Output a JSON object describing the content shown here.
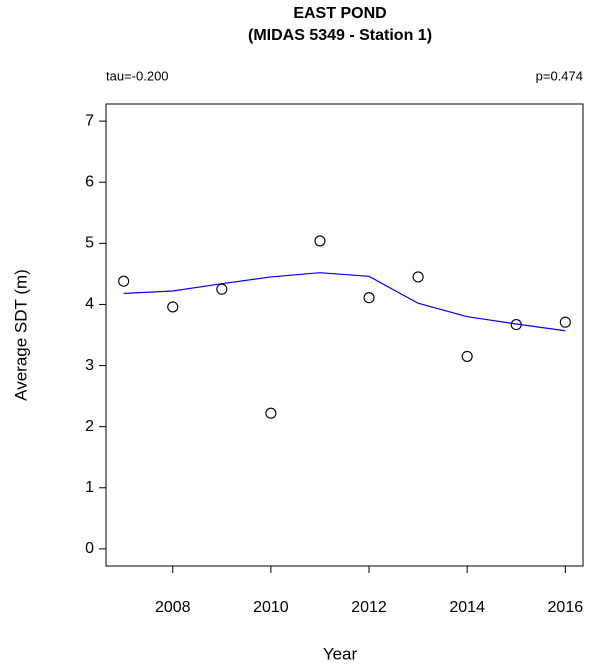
{
  "chart_data": {
    "type": "scatter",
    "title": "EAST POND",
    "subtitle": "(MIDAS 5349 - Station 1)",
    "annotations": [
      "tau=-0.200",
      "p=0.474"
    ],
    "x_label": "Year",
    "y_label": "Average SDT (m)",
    "x": [
      2007,
      2008,
      2009,
      2010,
      2011,
      2012,
      2013,
      2014,
      2015,
      2016
    ],
    "values": [
      4.38,
      3.96,
      4.25,
      2.22,
      5.04,
      4.11,
      4.45,
      3.15,
      3.67,
      3.71
    ],
    "color": "#000000",
    "trend": {
      "color": "#0000ff",
      "values": [
        4.18,
        4.22,
        4.34,
        4.45,
        4.52,
        4.46,
        4.02,
        3.8,
        3.68,
        3.57
      ]
    },
    "xlim": [
      2006.64,
      2016.36
    ],
    "ylim": [
      -0.28,
      7.28
    ],
    "xticks": [
      2008,
      2010,
      2012,
      2014,
      2016
    ],
    "yticks": [
      0,
      1,
      2,
      3,
      4,
      5,
      6,
      7
    ]
  }
}
